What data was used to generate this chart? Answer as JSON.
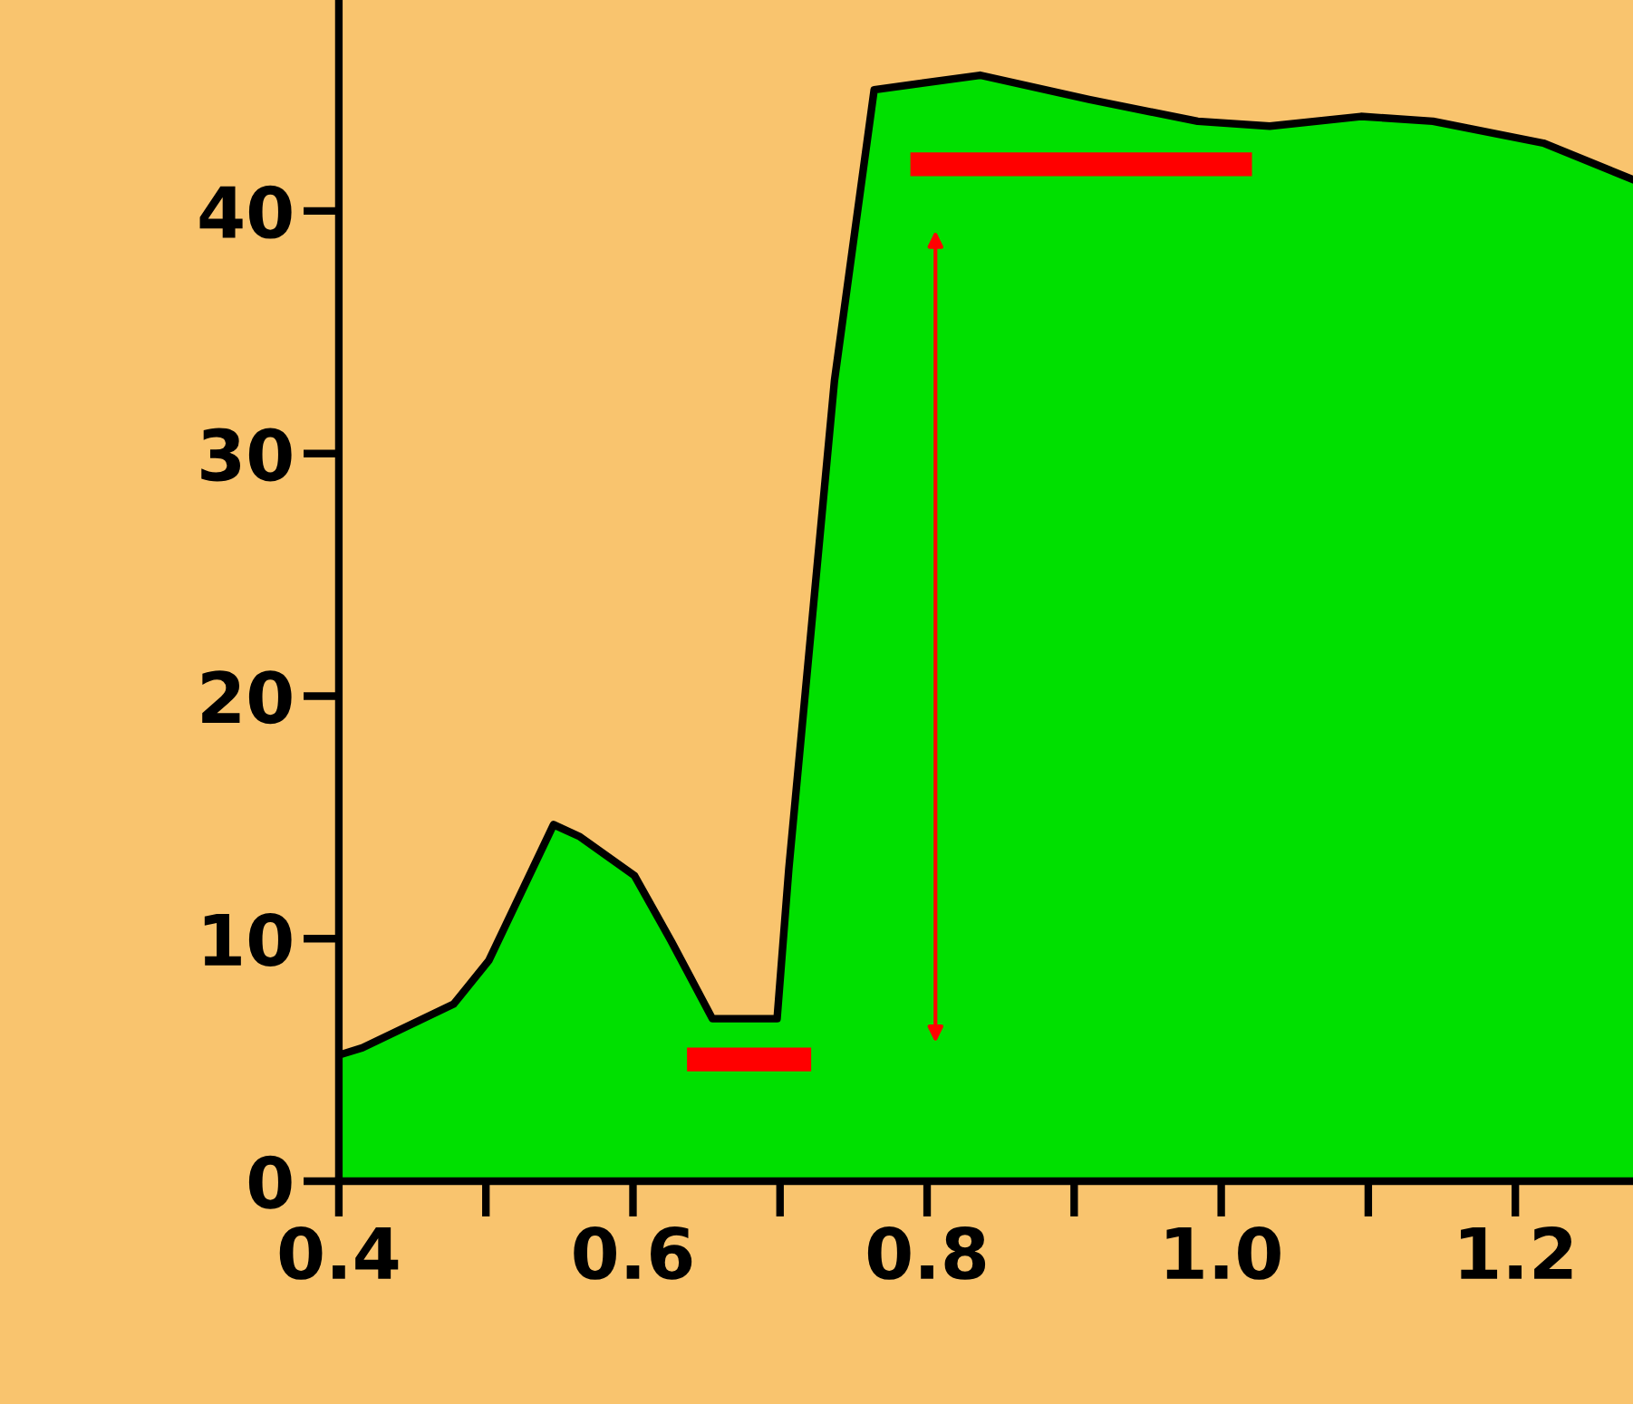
{
  "chart_data": {
    "type": "area",
    "color": "#00e000",
    "x": [
      0.4,
      0.416,
      0.478,
      0.502,
      0.546,
      0.564,
      0.601,
      0.626,
      0.654,
      0.698,
      0.706,
      0.737,
      0.764,
      0.836,
      0.91,
      0.984,
      1.033,
      1.095,
      1.144,
      1.219,
      1.28
    ],
    "values": [
      5.2,
      5.5,
      7.3,
      9.1,
      14.7,
      14.2,
      12.6,
      9.9,
      6.7,
      6.7,
      12.9,
      33.0,
      45.0,
      45.6,
      44.6,
      43.7,
      43.5,
      43.9,
      43.7,
      42.8,
      41.3
    ],
    "xlim": [
      0.4,
      1.28
    ],
    "ylim": [
      0,
      48.7
    ],
    "xticks": [
      0.4,
      0.6,
      0.8,
      {
        "value": 1.0,
        "label": "1.0"
      },
      1.2
    ],
    "yticks": [
      0,
      10,
      20,
      30,
      40
    ],
    "grid": false
  }
}
